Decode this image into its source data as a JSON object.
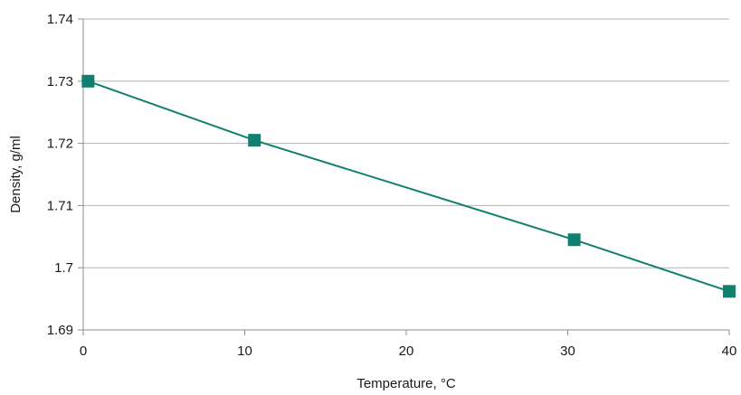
{
  "chart_data": {
    "type": "line",
    "title": "",
    "xlabel": "Temperature, °C",
    "ylabel": "Density, g/ml",
    "xlim": [
      0,
      40
    ],
    "ylim": [
      1.69,
      1.74
    ],
    "x_ticks": [
      0,
      10,
      20,
      30,
      40
    ],
    "y_ticks": [
      1.69,
      1.7,
      1.71,
      1.72,
      1.73,
      1.74
    ],
    "x_tick_labels": [
      "0",
      "10",
      "20",
      "30",
      "40"
    ],
    "y_tick_labels": [
      "1.69",
      "1.7",
      "1.71",
      "1.72",
      "1.73",
      "1.74"
    ],
    "grid": "horizontal",
    "legend": "none",
    "series": [
      {
        "x": [
          0.3,
          10.6,
          30.4,
          40.0
        ],
        "y": [
          1.73,
          1.7205,
          1.7045,
          1.6962
        ],
        "color": "#12806f",
        "marker": "square"
      }
    ]
  }
}
